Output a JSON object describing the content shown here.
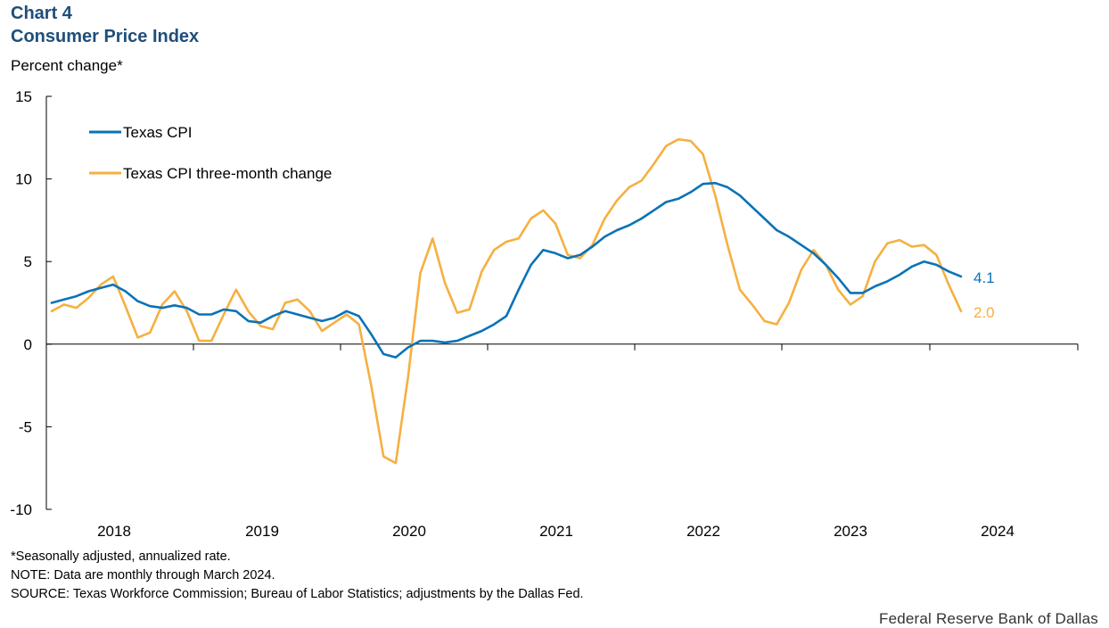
{
  "header": {
    "chart_number": "Chart 4",
    "title": "Consumer Price Index"
  },
  "chart_data": {
    "type": "line",
    "title": "Consumer Price Index",
    "ylabel": "Percent change*",
    "xlabel": "",
    "ylim": [
      -10,
      15
    ],
    "yticks": [
      15,
      10,
      5,
      0,
      -5,
      -10
    ],
    "ytick_labels": [
      "15",
      "10",
      "5",
      "0",
      "-5",
      "-10"
    ],
    "x_year_labels": [
      "2018",
      "2019",
      "2020",
      "2021",
      "2022",
      "2023",
      "2024"
    ],
    "x_start": "2017-10",
    "x_end": "2024-12",
    "grid": false,
    "legend_position": "top-left",
    "series": [
      {
        "name": "Texas CPI",
        "color": "#0a72b8",
        "end_label": "4.1",
        "values": [
          2.5,
          2.7,
          2.9,
          3.2,
          3.4,
          3.6,
          3.2,
          2.6,
          2.3,
          2.2,
          2.35,
          2.2,
          1.8,
          1.8,
          2.1,
          2.0,
          1.4,
          1.3,
          1.7,
          2.0,
          1.8,
          1.6,
          1.4,
          1.6,
          2.0,
          1.7,
          0.6,
          -0.6,
          -0.8,
          -0.2,
          0.2,
          0.2,
          0.1,
          0.2,
          0.5,
          0.8,
          1.2,
          1.7,
          3.3,
          4.8,
          5.7,
          5.5,
          5.2,
          5.4,
          5.9,
          6.5,
          6.9,
          7.2,
          7.6,
          8.1,
          8.6,
          8.8,
          9.2,
          9.7,
          9.75,
          9.5,
          9.0,
          8.3,
          7.6,
          6.9,
          6.5,
          6.0,
          5.5,
          4.8,
          4.0,
          3.1,
          3.1,
          3.5,
          3.8,
          4.2,
          4.7,
          5.0,
          4.8,
          4.4,
          4.1
        ]
      },
      {
        "name": "Texas CPI three-month change",
        "color": "#f5b041",
        "end_label": "2.0",
        "values": [
          2.0,
          2.4,
          2.2,
          2.8,
          3.6,
          4.1,
          2.3,
          0.4,
          0.7,
          2.4,
          3.2,
          2.0,
          0.2,
          0.2,
          1.8,
          3.3,
          2.0,
          1.1,
          0.9,
          2.5,
          2.7,
          2.0,
          0.8,
          1.3,
          1.8,
          1.2,
          -2.5,
          -6.8,
          -7.2,
          -2.0,
          4.3,
          6.4,
          3.7,
          1.9,
          2.1,
          4.4,
          5.7,
          6.2,
          6.4,
          7.6,
          8.1,
          7.3,
          5.4,
          5.2,
          6.0,
          7.6,
          8.7,
          9.5,
          9.9,
          10.9,
          12.0,
          12.4,
          12.3,
          11.5,
          9.0,
          6.0,
          3.3,
          2.4,
          1.4,
          1.2,
          2.5,
          4.5,
          5.7,
          4.8,
          3.3,
          2.4,
          2.9,
          5.0,
          6.1,
          6.3,
          5.9,
          6.0,
          5.4,
          3.6,
          2.0
        ]
      }
    ]
  },
  "footnotes": {
    "line1": "*Seasonally adjusted, annualized rate.",
    "line2": "NOTE: Data are monthly through March 2024.",
    "line3": "SOURCE: Texas Workforce Commission;  Bureau of Labor Statistics; adjustments by the Dallas Fed."
  },
  "branding": {
    "source_org": "Federal Reserve Bank of Dallas"
  }
}
